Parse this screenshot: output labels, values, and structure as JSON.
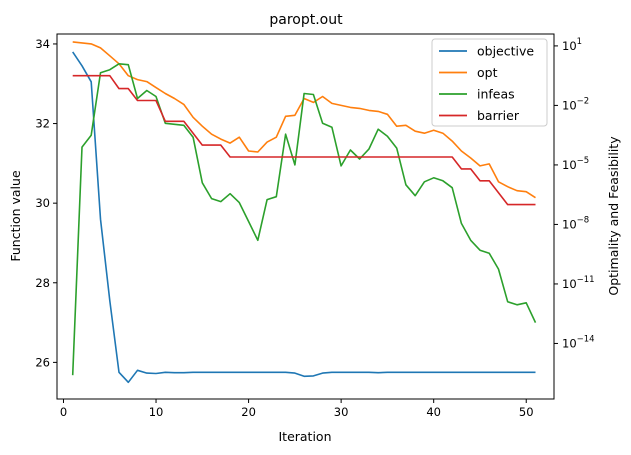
{
  "chart_data": {
    "type": "line",
    "title": "paropt.out",
    "xlabel": "Iteration",
    "ylabel": "Function value",
    "y2label": "Optimality and Feasibility",
    "xlim": [
      -0.7,
      53.0
    ],
    "ylim": [
      25.08,
      34.25
    ],
    "y2scale": "log",
    "y2lim_exp": [
      -16.8,
      1.6
    ],
    "xticks": [
      0,
      10,
      20,
      30,
      40,
      50
    ],
    "yticks": [
      26,
      28,
      30,
      32,
      34
    ],
    "y2ticks_exp": [
      -14,
      -11,
      -8,
      -5,
      -2,
      1
    ],
    "legend_loc": "upper-right",
    "grid": false,
    "series": [
      {
        "name": "objective",
        "axis": "left",
        "color": "#1f77b4",
        "x": [
          1,
          2,
          3,
          4,
          5,
          6,
          7,
          8,
          9,
          10,
          11,
          12,
          13,
          14,
          15,
          16,
          17,
          18,
          19,
          20,
          21,
          22,
          23,
          24,
          25,
          26,
          27,
          28,
          29,
          30,
          31,
          32,
          33,
          34,
          35,
          36,
          37,
          38,
          39,
          40,
          41,
          42,
          43,
          44,
          45,
          46,
          47,
          48,
          49,
          50,
          51
        ],
        "y": [
          33.8,
          33.45,
          33.05,
          29.6,
          27.55,
          25.75,
          25.5,
          25.8,
          25.73,
          25.72,
          25.75,
          25.74,
          25.74,
          25.75,
          25.75,
          25.75,
          25.75,
          25.75,
          25.75,
          25.75,
          25.75,
          25.75,
          25.75,
          25.75,
          25.73,
          25.65,
          25.66,
          25.73,
          25.75,
          25.75,
          25.75,
          25.75,
          25.75,
          25.74,
          25.75,
          25.75,
          25.75,
          25.75,
          25.75,
          25.75,
          25.75,
          25.75,
          25.75,
          25.75,
          25.75,
          25.75,
          25.75,
          25.75,
          25.75,
          25.75,
          25.75
        ]
      },
      {
        "name": "opt",
        "axis": "right",
        "color": "#ff7f0e",
        "x": [
          1,
          2,
          3,
          4,
          5,
          6,
          7,
          8,
          9,
          10,
          11,
          12,
          13,
          14,
          15,
          16,
          17,
          18,
          19,
          20,
          21,
          22,
          23,
          24,
          25,
          26,
          27,
          28,
          29,
          30,
          31,
          32,
          33,
          34,
          35,
          36,
          37,
          38,
          39,
          40,
          41,
          42,
          43,
          44,
          45,
          46,
          47,
          48,
          49,
          50,
          51
        ],
        "y_exp": [
          1.2,
          1.15,
          1.1,
          0.9,
          0.5,
          0.1,
          -0.5,
          -0.7,
          -0.8,
          -1.1,
          -1.4,
          -1.65,
          -1.95,
          -2.6,
          -3.05,
          -3.45,
          -3.7,
          -3.9,
          -3.6,
          -4.3,
          -4.35,
          -3.85,
          -3.6,
          -2.55,
          -2.5,
          -1.65,
          -1.85,
          -1.55,
          -1.9,
          -2.0,
          -2.1,
          -2.15,
          -2.25,
          -2.3,
          -2.45,
          -3.05,
          -3.0,
          -3.3,
          -3.4,
          -3.25,
          -3.4,
          -3.8,
          -4.3,
          -4.65,
          -5.05,
          -4.95,
          -5.85,
          -6.1,
          -6.3,
          -6.35,
          -6.65
        ]
      },
      {
        "name": "infeas",
        "axis": "right",
        "color": "#2ca02c",
        "x": [
          1,
          2,
          3,
          4,
          5,
          6,
          7,
          8,
          9,
          10,
          11,
          12,
          13,
          14,
          15,
          16,
          17,
          18,
          19,
          20,
          21,
          22,
          23,
          24,
          25,
          26,
          27,
          28,
          29,
          30,
          31,
          32,
          33,
          34,
          35,
          36,
          37,
          38,
          39,
          40,
          41,
          42,
          43,
          44,
          45,
          46,
          47,
          48,
          49,
          50,
          51
        ],
        "y_exp": [
          -15.6,
          -4.1,
          -3.5,
          -0.35,
          -0.2,
          0.1,
          0.05,
          -1.65,
          -1.25,
          -1.55,
          -2.9,
          -2.95,
          -3.0,
          -3.6,
          -5.9,
          -6.7,
          -6.85,
          -6.45,
          -6.9,
          -7.85,
          -8.8,
          -6.75,
          -6.6,
          -3.45,
          -5.0,
          -1.4,
          -1.45,
          -2.9,
          -3.1,
          -5.05,
          -4.25,
          -4.7,
          -4.2,
          -3.2,
          -3.55,
          -4.15,
          -6.0,
          -6.55,
          -5.85,
          -5.65,
          -5.8,
          -6.15,
          -7.95,
          -8.8,
          -9.3,
          -9.45,
          -10.25,
          -11.9,
          -12.05,
          -11.95,
          -12.95
        ]
      },
      {
        "name": "barrier",
        "axis": "right",
        "color": "#d62728",
        "x": [
          1,
          2,
          3,
          4,
          5,
          6,
          7,
          8,
          9,
          10,
          11,
          12,
          13,
          14,
          15,
          16,
          17,
          18,
          19,
          20,
          21,
          22,
          23,
          24,
          25,
          26,
          27,
          28,
          29,
          30,
          31,
          32,
          33,
          34,
          35,
          36,
          37,
          38,
          39,
          40,
          41,
          42,
          43,
          44,
          45,
          46,
          47,
          48,
          49,
          50,
          51
        ],
        "y_exp": [
          -0.5,
          -0.5,
          -0.5,
          -0.5,
          -0.5,
          -1.15,
          -1.15,
          -1.75,
          -1.75,
          -1.75,
          -2.8,
          -2.8,
          -2.8,
          -3.4,
          -4.0,
          -4.0,
          -4.0,
          -4.6,
          -4.6,
          -4.6,
          -4.6,
          -4.6,
          -4.6,
          -4.6,
          -4.6,
          -4.6,
          -4.6,
          -4.6,
          -4.6,
          -4.6,
          -4.6,
          -4.6,
          -4.6,
          -4.6,
          -4.6,
          -4.6,
          -4.6,
          -4.6,
          -4.6,
          -4.6,
          -4.6,
          -4.6,
          -5.2,
          -5.2,
          -5.8,
          -5.8,
          -6.4,
          -7.0,
          -7.0,
          -7.0,
          -7.0
        ]
      }
    ]
  }
}
